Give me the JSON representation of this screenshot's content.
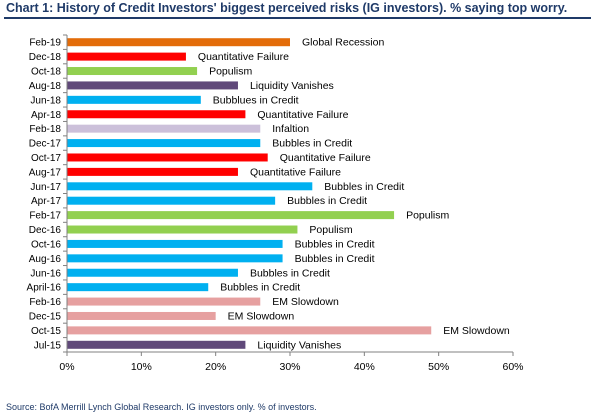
{
  "title": "Chart 1: History of Credit Investors' biggest perceived risks (IG investors). % saying top worry.",
  "source": "Source: BofA Merrill Lynch Global Research. IG investors only. % of investors.",
  "chart_data": {
    "type": "bar",
    "orientation": "horizontal",
    "title": "Chart 1: History of Credit Investors' biggest perceived risks (IG investors). % saying top worry.",
    "xlim": [
      0,
      60
    ],
    "x_ticks": [
      "0%",
      "10%",
      "20%",
      "30%",
      "40%",
      "50%",
      "60%"
    ],
    "grid": false,
    "categories": [
      "Feb-19",
      "Dec-18",
      "Oct-18",
      "Aug-18",
      "Jun-18",
      "Apr-18",
      "Feb-18",
      "Dec-17",
      "Oct-17",
      "Aug-17",
      "Jun-17",
      "Apr-17",
      "Feb-17",
      "Dec-16",
      "Oct-16",
      "Aug-16",
      "Jun-16",
      "April-16",
      "Feb-16",
      "Dec-15",
      "Oct-15",
      "Jul-15"
    ],
    "values": [
      30,
      16,
      17.5,
      23,
      18,
      24,
      26,
      26,
      27,
      23,
      33,
      28,
      44,
      31,
      29,
      29,
      23,
      19,
      26,
      20,
      49,
      24
    ],
    "labels": [
      "Global Recession",
      "Quantitative Failure",
      "Populism",
      "Liquidity Vanishes",
      "Bubblues in Credit",
      "Quantitative Failure",
      "Infaltion",
      "Bubbles in Credit",
      "Quantitative Failure",
      "Quantitative Failure",
      "Bubbles in Credit",
      "Bubbles in Credit",
      "Populism",
      "Populism",
      "Bubbles in Credit",
      "Bubbles in Credit",
      "Bubbles in Credit",
      "Bubbles in Credit",
      "EM Slowdown",
      "EM Slowdown",
      "EM Slowdown",
      "Liquidity Vanishes"
    ],
    "colors": [
      "#e36c09",
      "#ff0000",
      "#92d050",
      "#60497a",
      "#00b0f0",
      "#ff0000",
      "#ccc0da",
      "#00b0f0",
      "#ff0000",
      "#ff0000",
      "#00b0f0",
      "#00b0f0",
      "#92d050",
      "#92d050",
      "#00b0f0",
      "#00b0f0",
      "#00b0f0",
      "#00b0f0",
      "#e6a0a0",
      "#e6a0a0",
      "#e6a0a0",
      "#60497a"
    ]
  }
}
